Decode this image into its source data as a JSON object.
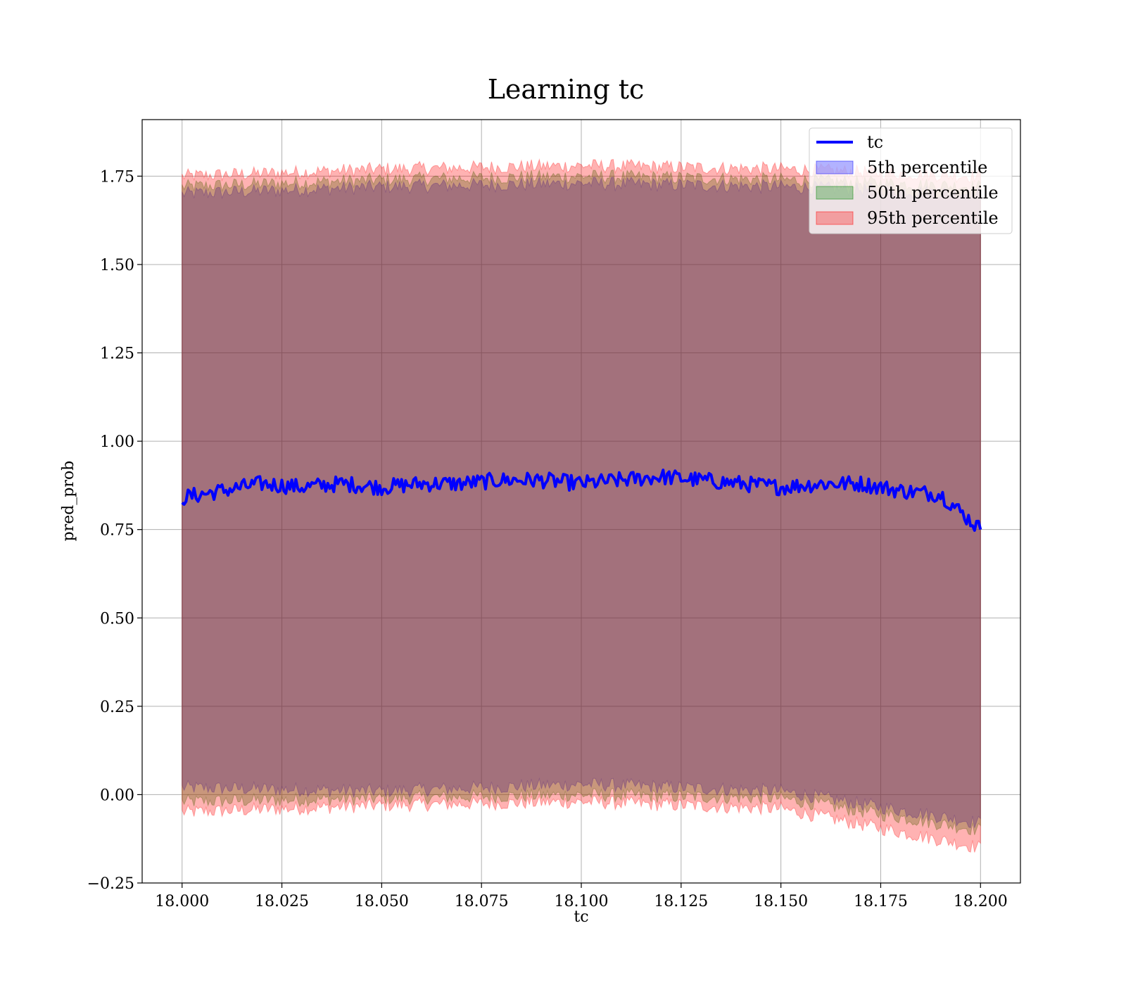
{
  "chart_data": {
    "type": "line",
    "title": "Learning tc",
    "xlabel": "tc",
    "ylabel": "pred_prob",
    "xlim": [
      17.99,
      18.21
    ],
    "ylim": [
      -0.25,
      1.91
    ],
    "xticks": [
      18.0,
      18.025,
      18.05,
      18.075,
      18.1,
      18.125,
      18.15,
      18.175,
      18.2
    ],
    "xtick_labels": [
      "18.000",
      "18.025",
      "18.050",
      "18.075",
      "18.100",
      "18.125",
      "18.150",
      "18.175",
      "18.200"
    ],
    "yticks": [
      -0.25,
      0.0,
      0.25,
      0.5,
      0.75,
      1.0,
      1.25,
      1.5,
      1.75
    ],
    "ytick_labels": [
      "−0.25",
      "0.00",
      "0.25",
      "0.50",
      "0.75",
      "1.00",
      "1.25",
      "1.50",
      "1.75"
    ],
    "grid": true,
    "legend_position": "top-right",
    "x_range": [
      18.0,
      18.2
    ],
    "series": [
      {
        "name": "tc",
        "kind": "line",
        "color": "#0000ff",
        "x": [
          18.0,
          18.01,
          18.02,
          18.03,
          18.04,
          18.05,
          18.06,
          18.07,
          18.08,
          18.09,
          18.1,
          18.11,
          18.12,
          18.13,
          18.14,
          18.15,
          18.16,
          18.17,
          18.18,
          18.19,
          18.2
        ],
        "y": [
          0.84,
          0.86,
          0.88,
          0.87,
          0.88,
          0.87,
          0.88,
          0.88,
          0.89,
          0.89,
          0.88,
          0.89,
          0.9,
          0.89,
          0.88,
          0.87,
          0.88,
          0.88,
          0.86,
          0.85,
          0.75
        ]
      },
      {
        "name": "5th percentile",
        "kind": "band",
        "color": "#0000ff",
        "opacity": 0.3,
        "x": [
          18.0,
          18.05,
          18.1,
          18.15,
          18.2
        ],
        "lower": [
          0.02,
          0.01,
          0.03,
          0.01,
          -0.08
        ],
        "upper": [
          1.7,
          1.72,
          1.73,
          1.72,
          1.7
        ]
      },
      {
        "name": "50th percentile",
        "kind": "band",
        "color": "#008000",
        "opacity": 0.3,
        "x": [
          18.0,
          18.05,
          18.1,
          18.15,
          18.2
        ],
        "lower": [
          -0.02,
          -0.01,
          0.0,
          -0.01,
          -0.1
        ],
        "upper": [
          1.72,
          1.74,
          1.75,
          1.74,
          1.72
        ]
      },
      {
        "name": "95th percentile",
        "kind": "band",
        "color": "#ff0000",
        "opacity": 0.3,
        "x": [
          18.0,
          18.05,
          18.1,
          18.15,
          18.2
        ],
        "lower": [
          -0.05,
          -0.03,
          -0.02,
          -0.04,
          -0.15
        ],
        "upper": [
          1.75,
          1.77,
          1.78,
          1.77,
          1.75
        ]
      }
    ]
  }
}
